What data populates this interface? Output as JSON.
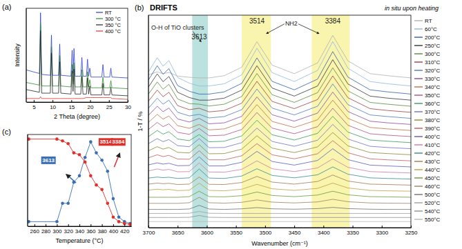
{
  "chart_data": [
    {
      "type": "line",
      "panel_label": "(a)",
      "x_label": "2 Theta (degree)",
      "y_label": "Intensity",
      "xlim": [
        3,
        30
      ],
      "xticks": [
        5,
        10,
        15,
        20,
        25,
        30
      ],
      "ylim": [
        0,
        105
      ],
      "tick_labels": "x",
      "grid": false,
      "legend": "upper right",
      "x": [
        3,
        6.5,
        6.8,
        7.1,
        9.4,
        9.7,
        10,
        11.6,
        11.9,
        12.2,
        14.9,
        15.2,
        15.45,
        15.7,
        16,
        17.5,
        17.8,
        18.1,
        19,
        19.3,
        19.6,
        19.9,
        20.2,
        23.1,
        23.4,
        23.7,
        25.2,
        25.5,
        25.8,
        30
      ],
      "series": [
        {
          "name": "RT",
          "color": "#2b3cd6",
          "values": [
            36,
            32,
            100,
            31,
            30,
            75,
            30,
            30,
            65,
            30,
            29,
            58,
            32,
            60,
            29,
            29,
            50,
            29,
            29,
            48,
            29,
            38,
            28,
            28,
            42,
            28,
            28,
            38,
            28,
            27
          ]
        },
        {
          "name": "300 °C",
          "color": "#2e8b2e",
          "values": [
            22,
            19,
            88,
            18,
            18,
            62,
            18,
            18,
            52,
            18,
            17,
            42,
            20,
            44,
            17,
            17,
            36,
            17,
            17,
            34,
            17,
            25,
            16,
            16,
            28,
            16,
            16,
            24,
            16,
            15
          ]
        },
        {
          "name": "350 °C",
          "color": "#222222",
          "values": [
            14,
            11,
            80,
            10,
            10,
            55,
            10,
            10,
            45,
            10,
            9,
            35,
            12,
            37,
            9,
            9,
            29,
            9,
            9,
            27,
            9,
            18,
            8,
            8,
            21,
            8,
            8,
            17,
            8,
            7
          ]
        },
        {
          "name": "400 °C",
          "color": "#e0302a",
          "values": [
            4,
            4,
            6,
            4,
            4,
            4,
            4,
            4,
            4,
            4,
            4,
            4,
            4,
            4,
            4,
            4,
            4,
            4,
            5,
            5,
            5,
            5,
            5,
            5,
            5,
            5,
            5,
            5,
            4,
            3
          ]
        }
      ]
    },
    {
      "type": "line",
      "panel_label": "(b)",
      "title": "DRIFTS",
      "subtitle": "in situ upon heating",
      "x_label": "Wavenumber (cm⁻¹)",
      "y_label": "1-T / %",
      "xlim": [
        3700,
        3250
      ],
      "xticks": [
        3700,
        3650,
        3600,
        3550,
        3500,
        3450,
        3400,
        3350,
        3300,
        3250
      ],
      "ylim": [
        0,
        105
      ],
      "tick_labels": "x",
      "grid": false,
      "legend": "right",
      "bands": [
        {
          "x0": 3625,
          "x1": 3598,
          "color": "#9fd6d2"
        },
        {
          "x0": 3540,
          "x1": 3490,
          "color": "#f6f08c"
        },
        {
          "x0": 3420,
          "x1": 3355,
          "color": "#f6f08c"
        }
      ],
      "annotations": [
        {
          "text": "O-H of TiO clusters",
          "x": 3650,
          "y": 98
        },
        {
          "text": "3613",
          "x": 3613,
          "y": 93
        },
        {
          "text": "3514",
          "x": 3514,
          "y": 101
        },
        {
          "text": "NH2",
          "x": 3455,
          "y": 100
        },
        {
          "text": "3384",
          "x": 3384,
          "y": 101
        }
      ],
      "x": [
        3700,
        3685,
        3675,
        3665,
        3650,
        3630,
        3613,
        3596,
        3570,
        3540,
        3514,
        3488,
        3450,
        3410,
        3384,
        3358,
        3320,
        3290,
        3250
      ],
      "series": [
        {
          "name": "RT",
          "color": "#b0b0b0",
          "values": [
            75.5,
            77,
            76.1,
            76.7,
            74.9,
            74.3,
            74,
            74,
            75.1,
            79.3,
            91.9,
            80.3,
            76.1,
            81.4,
            95,
            82.4,
            76.1,
            75.1,
            74
          ]
        },
        {
          "name": "60°C",
          "color": "#8fb8de",
          "values": [
            77,
            84,
            79.8,
            82.6,
            74.2,
            71.4,
            70,
            70,
            71.1,
            75.5,
            88.7,
            76.6,
            72.2,
            77.7,
            92,
            78.8,
            72.2,
            71.1,
            70
          ]
        },
        {
          "name": "200°C",
          "color": "#2f5fb0",
          "values": [
            73,
            80,
            75.8,
            78.6,
            70.2,
            67.4,
            66,
            66,
            67.1,
            71.3,
            83.9,
            72.3,
            68.1,
            73.4,
            87,
            74.4,
            68.1,
            67.1,
            66
          ]
        },
        {
          "name": "250°C",
          "color": "#333333",
          "values": [
            69.5,
            76,
            72.1,
            74.7,
            66.9,
            64.3,
            63,
            63,
            64,
            68,
            80,
            69,
            65,
            70,
            83,
            71,
            65,
            64,
            63
          ]
        },
        {
          "name": "300°C",
          "color": "#5a8a3a",
          "values": [
            66,
            72,
            68.4,
            70.8,
            63.6,
            61.3,
            61,
            60.1,
            61,
            64.8,
            76.2,
            65.7,
            61.9,
            66.7,
            79,
            67.6,
            61.9,
            61,
            60
          ]
        },
        {
          "name": "310°C",
          "color": "#a04040",
          "values": [
            62.5,
            68,
            64.7,
            66.9,
            60.3,
            58.3,
            59,
            57.2,
            57.9,
            61.5,
            72.3,
            62.4,
            58.8,
            63.3,
            75,
            64.2,
            58.8,
            57.9,
            57
          ]
        },
        {
          "name": "320°C",
          "color": "#4a7ac0",
          "values": [
            59,
            64,
            61,
            63,
            57,
            55.2,
            56,
            54.2,
            54.9,
            58.3,
            68.5,
            59.1,
            55.7,
            60,
            71,
            60.8,
            55.7,
            54.9,
            54
          ]
        },
        {
          "name": "330°C",
          "color": "#8a4aa0",
          "values": [
            55.5,
            60,
            57.3,
            59.1,
            53.7,
            52.2,
            54,
            51.3,
            51.8,
            55,
            64.6,
            55.8,
            52.6,
            56.6,
            67,
            57.4,
            52.6,
            51.8,
            51
          ]
        },
        {
          "name": "340°C",
          "color": "#c07040",
          "values": [
            52,
            56,
            53.6,
            55.2,
            50.4,
            49.1,
            51,
            48.3,
            48.8,
            51.8,
            60.8,
            52.5,
            49.5,
            53.3,
            63,
            54,
            49.5,
            48.8,
            48
          ]
        },
        {
          "name": "350°C",
          "color": "#b05080",
          "values": [
            48.5,
            52,
            49.9,
            51.3,
            47.1,
            46.1,
            49,
            45.4,
            45.7,
            48.5,
            56.9,
            49.2,
            46.4,
            49.9,
            59,
            50.6,
            46.4,
            45.7,
            45
          ]
        },
        {
          "name": "360°C",
          "color": "#3a9a5a",
          "values": [
            45,
            48,
            46.2,
            47.4,
            43.8,
            43,
            46,
            42.4,
            42.7,
            45.3,
            53.1,
            45.9,
            43.3,
            46.6,
            55,
            47.2,
            43.3,
            42.7,
            42
          ]
        },
        {
          "name": "370°C",
          "color": "#7070c0",
          "values": [
            41.5,
            44,
            42.5,
            43.5,
            40.5,
            40,
            44,
            39.5,
            39.6,
            42,
            49.2,
            42.6,
            40.2,
            43.2,
            51,
            43.8,
            40.2,
            39.6,
            39
          ]
        },
        {
          "name": "380°C",
          "color": "#8a8a30",
          "values": [
            38,
            40,
            38.8,
            39.6,
            37.2,
            36.9,
            41,
            36.5,
            36.6,
            38.8,
            45.4,
            39.3,
            37.1,
            39.9,
            47,
            40.4,
            37.1,
            36.6,
            36
          ]
        },
        {
          "name": "390°C",
          "color": "#c05a5a",
          "values": [
            34.5,
            36,
            35.1,
            35.7,
            33.9,
            33.8,
            38,
            33.5,
            33.5,
            35.5,
            41.5,
            36,
            34,
            36.5,
            43,
            37,
            34,
            33.5,
            33
          ]
        },
        {
          "name": "400°C",
          "color": "#5a5ac0",
          "values": [
            31,
            32,
            31.4,
            31.8,
            30.6,
            30.7,
            35,
            30.5,
            30.5,
            32.3,
            37.7,
            32.7,
            30.9,
            33.2,
            39,
            33.6,
            30.9,
            30.5,
            30
          ]
        },
        {
          "name": "410°C",
          "color": "#d07aa0",
          "values": [
            28,
            29,
            28.4,
            28.8,
            27.6,
            27.7,
            32,
            27.5,
            27.4,
            28.8,
            33,
            29.1,
            27.7,
            29.5,
            34,
            29.8,
            27.7,
            27.4,
            27
          ]
        },
        {
          "name": "420°C",
          "color": "#3a8a8a",
          "values": [
            24.5,
            25,
            24.7,
            24.9,
            24.3,
            24.6,
            29,
            24.5,
            24.3,
            25.5,
            29.1,
            25.8,
            24.6,
            26.1,
            30,
            26.4,
            24.6,
            24.3,
            24
          ]
        },
        {
          "name": "430°C",
          "color": "#a07a50",
          "values": [
            21.5,
            22,
            21.7,
            21.9,
            21.3,
            21.5,
            25,
            21.4,
            21.3,
            22.3,
            25.3,
            22.5,
            21.5,
            22.8,
            26,
            23,
            21.5,
            21.3,
            21
          ]
        },
        {
          "name": "440°C",
          "color": "#c0a040",
          "values": [
            18.5,
            19,
            18.7,
            18.9,
            18.3,
            18.5,
            22,
            18.4,
            18.2,
            19,
            21.4,
            19.2,
            18.4,
            19.4,
            22,
            19.6,
            18.4,
            18.2,
            18
          ]
        },
        {
          "name": "450°C",
          "color": "#6a9a3a",
          "values": [
            15,
            15,
            15,
            15,
            15,
            15.3,
            18,
            15.3,
            15.2,
            15.8,
            17.6,
            15.9,
            15.3,
            16.1,
            18,
            16.2,
            15.3,
            15.2,
            15
          ]
        },
        {
          "name": "460°C",
          "color": "#a08060",
          "values": [
            12,
            12,
            12,
            12,
            12,
            12.3,
            15,
            12.3,
            12.1,
            12.5,
            13.7,
            12.6,
            12.2,
            12.7,
            14,
            12.8,
            12.2,
            12.1,
            12
          ]
        },
        {
          "name": "500°C",
          "color": "#707070",
          "values": [
            9,
            9,
            9,
            9,
            9,
            9.2,
            11,
            9.2,
            9,
            9.3,
            9.9,
            9.3,
            9.1,
            9.4,
            10,
            9.4,
            9.1,
            9,
            9
          ]
        },
        {
          "name": "520°C",
          "color": "#a0a0a0",
          "values": [
            7,
            7,
            7,
            7,
            7,
            7.1,
            8,
            7.1,
            7,
            7,
            7,
            7,
            7,
            7,
            7,
            7,
            7,
            7,
            7
          ]
        },
        {
          "name": "540°C",
          "color": "#909090",
          "values": [
            5,
            5,
            5,
            5,
            5,
            5.1,
            6,
            5.1,
            5,
            5,
            5,
            5,
            5,
            5,
            5,
            5,
            5,
            5,
            5
          ]
        },
        {
          "name": "550°C",
          "color": "#b8b8b8",
          "values": [
            3,
            3,
            3,
            3,
            3,
            3,
            3,
            3,
            3,
            3,
            3,
            3,
            3,
            3,
            3,
            3,
            3,
            3,
            3
          ]
        }
      ]
    },
    {
      "type": "line",
      "panel_label": "(c)",
      "x_label": "Temperature (°C)",
      "xlim": [
        248,
        432
      ],
      "xticks": [
        260,
        280,
        300,
        320,
        340,
        360,
        380,
        400,
        420
      ],
      "ylim": [
        0,
        100
      ],
      "tick_labels": "x",
      "grid": false,
      "annotations": [
        {
          "text": "3613",
          "x": 285,
          "y": 70,
          "color": "#3a6fb5"
        },
        {
          "text": "3514",
          "x": 387,
          "y": 90,
          "color": "#e0302a"
        },
        {
          "text": "3384",
          "x": 409,
          "y": 90,
          "color": "#e0302a"
        }
      ],
      "x": [
        250,
        300,
        310,
        320,
        330,
        340,
        350,
        360,
        370,
        380,
        390,
        400,
        410,
        420,
        430
      ],
      "series": [
        {
          "color": "#3a6fb5",
          "marker": "circle",
          "line_style": "solid",
          "values": [
            5,
            5,
            25,
            25,
            48,
            55,
            75,
            92,
            80,
            72,
            60,
            30,
            10,
            5,
            3
          ]
        },
        {
          "color": "#e0302a",
          "marker": "circle",
          "line_style": "solid",
          "values": [
            95,
            95,
            93,
            90,
            80,
            78,
            70,
            55,
            45,
            40,
            25,
            10,
            5,
            3,
            2
          ]
        }
      ]
    }
  ]
}
